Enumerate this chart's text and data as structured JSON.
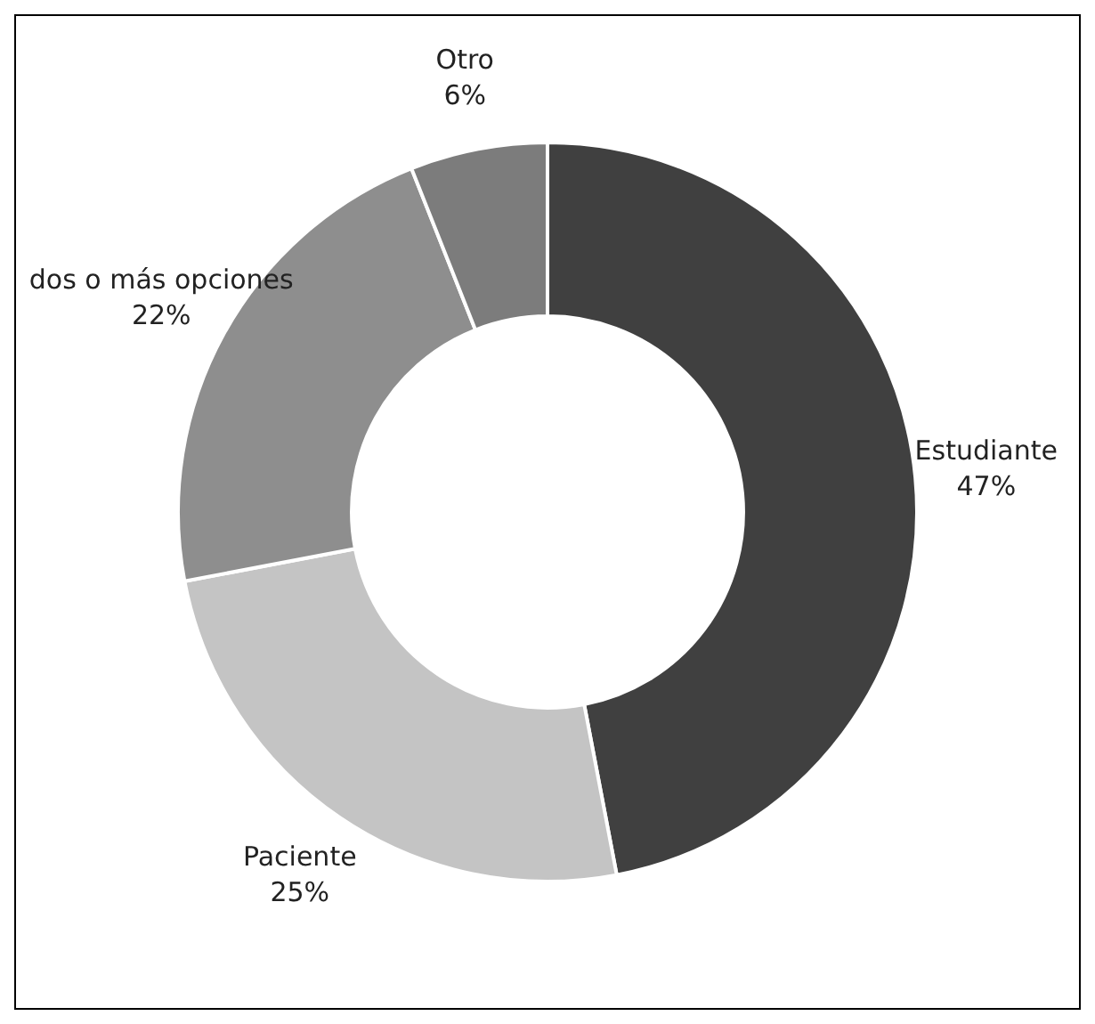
{
  "chart_data": {
    "type": "donut",
    "categories": [
      "Estudiante",
      "Paciente",
      "dos o más opciones",
      "Otro"
    ],
    "values": [
      47,
      25,
      22,
      6
    ],
    "value_labels": [
      "47%",
      "25%",
      "22%",
      "6%"
    ],
    "colors": [
      "#404040",
      "#c4c4c4",
      "#8e8e8e",
      "#7c7c7c"
    ],
    "legend": false
  }
}
